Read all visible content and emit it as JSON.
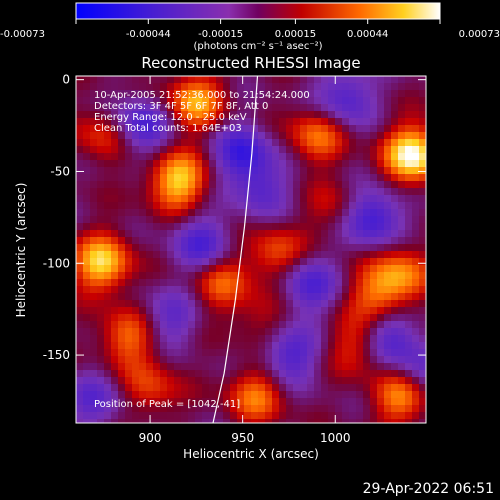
{
  "timestamp": "29-Apr-2022 06:51",
  "colorbar": {
    "min": -0.00073,
    "max": 0.00073,
    "tick_labels": [
      "-0.00073",
      "-0.00044",
      "-0.00015",
      "0.00015",
      "0.00044",
      "0.00073"
    ],
    "units": "(photons cm⁻² s⁻¹ asec⁻²)"
  },
  "chart_data": {
    "type": "heatmap",
    "title": "Reconstructed RHESSI Image",
    "xlabel": "Heliocentric X (arcsec)",
    "ylabel": "Heliocentric Y (arcsec)",
    "xlim": [
      860,
      1049
    ],
    "ylim": [
      -187,
      2
    ],
    "xticks": [
      900,
      950,
      1000
    ],
    "yticks": [
      0,
      -50,
      -100,
      -150
    ],
    "annotations": [
      "10-Apr-2005 21:52:36.000 to 21:54:24.000",
      "Detectors: 3F 4F 5F 6F 7F 8F, Att 0",
      "Energy Range: 12.0 - 25.0 keV",
      "Clean     Total counts: 1.64E+03"
    ],
    "peak_label": "Position of Peak = [1042,-41]",
    "limb_curve": [
      [
        934,
        -187
      ],
      [
        940,
        -160
      ],
      [
        946,
        -120
      ],
      [
        951,
        -80
      ],
      [
        955,
        -40
      ],
      [
        958,
        2
      ]
    ],
    "bright_sources": [
      {
        "x": 1042,
        "y": -41,
        "level": 0.00073
      },
      {
        "x": 915,
        "y": -55,
        "level": 0.0006
      },
      {
        "x": 874,
        "y": -100,
        "level": 0.0006
      },
      {
        "x": 924,
        "y": -12,
        "level": 0.0005
      },
      {
        "x": 1036,
        "y": -172,
        "level": 0.0005
      },
      {
        "x": 1023,
        "y": -118,
        "level": 0.0004
      },
      {
        "x": 990,
        "y": -30,
        "level": 0.0004
      },
      {
        "x": 1036,
        "y": -105,
        "level": 0.0004
      },
      {
        "x": 957,
        "y": -172,
        "level": 0.0004
      },
      {
        "x": 938,
        "y": -110,
        "level": 0.00035
      },
      {
        "x": 968,
        "y": -95,
        "level": 0.00035
      },
      {
        "x": 888,
        "y": -140,
        "level": 0.0004
      },
      {
        "x": 900,
        "y": -168,
        "level": 0.0003
      },
      {
        "x": 1012,
        "y": -145,
        "level": 0.0003
      },
      {
        "x": 960,
        "y": -130,
        "level": 0.0002
      },
      {
        "x": 1000,
        "y": -70,
        "level": 0.0002
      },
      {
        "x": 875,
        "y": -30,
        "level": 0.0003
      }
    ],
    "dark_sources": [
      {
        "x": 895,
        "y": -25,
        "level": -0.00045
      },
      {
        "x": 950,
        "y": -40,
        "level": -0.00045
      },
      {
        "x": 928,
        "y": -90,
        "level": -0.0004
      },
      {
        "x": 1005,
        "y": -10,
        "level": -0.0004
      },
      {
        "x": 985,
        "y": -112,
        "level": -0.0004
      },
      {
        "x": 1020,
        "y": -75,
        "level": -0.0005
      },
      {
        "x": 975,
        "y": -150,
        "level": -0.0004
      },
      {
        "x": 1030,
        "y": -140,
        "level": -0.0004
      },
      {
        "x": 910,
        "y": -130,
        "level": -0.0003
      },
      {
        "x": 1045,
        "y": -160,
        "level": -0.0003
      },
      {
        "x": 870,
        "y": -175,
        "level": -0.0003
      },
      {
        "x": 960,
        "y": -60,
        "level": -0.0003
      }
    ]
  }
}
